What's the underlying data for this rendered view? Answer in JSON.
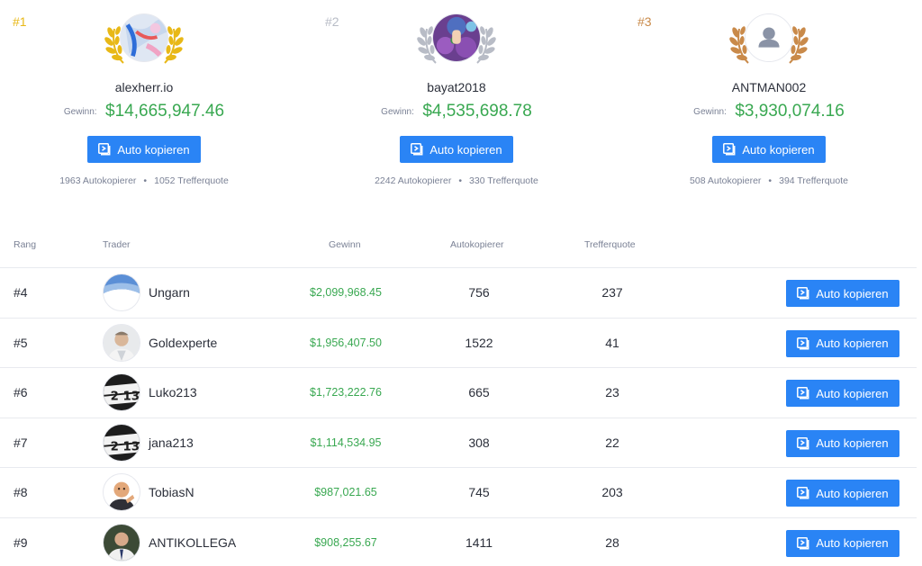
{
  "colors": {
    "accent": "#2a84f5",
    "gain": "#39a851",
    "gold": "#e8b817",
    "silver": "#b8bcc6",
    "bronze": "#c98a4a"
  },
  "podium": [
    {
      "rank": "#1",
      "name": "alexherr.io",
      "gain_label": "Gewinn:",
      "gain": "$14,665,947.46",
      "button": "Auto kopieren",
      "copiers": "1963 Autokopierer",
      "dot": "•",
      "hit": "1052 Trefferquote",
      "avatar": "abstract-photo",
      "medal": "gold"
    },
    {
      "rank": "#2",
      "name": "bayat2018",
      "gain_label": "Gewinn:",
      "gain": "$4,535,698.78",
      "button": "Auto kopieren",
      "copiers": "2242 Autokopierer",
      "dot": "•",
      "hit": "330 Trefferquote",
      "avatar": "flower-photo",
      "medal": "silver"
    },
    {
      "rank": "#3",
      "name": "ANTMAN002",
      "gain_label": "Gewinn:",
      "gain": "$3,930,074.16",
      "button": "Auto kopieren",
      "copiers": "508 Autokopierer",
      "dot": "•",
      "hit": "394 Trefferquote",
      "avatar": "default-user-icon",
      "medal": "bronze"
    }
  ],
  "table": {
    "headers": {
      "rank": "Rang",
      "trader": "Trader",
      "gain": "Gewinn",
      "copiers": "Autokopierer",
      "hit": "Trefferquote"
    },
    "rows": [
      {
        "rank": "#4",
        "name": "Ungarn",
        "gain": "$2,099,968.45",
        "copiers": "756",
        "hit": "237",
        "button": "Auto kopieren"
      },
      {
        "rank": "#5",
        "name": "Goldexperte",
        "gain": "$1,956,407.50",
        "copiers": "1522",
        "hit": "41",
        "button": "Auto kopieren"
      },
      {
        "rank": "#6",
        "name": "Luko213",
        "gain": "$1,723,222.76",
        "copiers": "665",
        "hit": "23",
        "button": "Auto kopieren"
      },
      {
        "rank": "#7",
        "name": "jana213",
        "gain": "$1,114,534.95",
        "copiers": "308",
        "hit": "22",
        "button": "Auto kopieren"
      },
      {
        "rank": "#8",
        "name": "TobiasN",
        "gain": "$987,021.65",
        "copiers": "745",
        "hit": "203",
        "button": "Auto kopieren"
      },
      {
        "rank": "#9",
        "name": "ANTIKOLLEGA",
        "gain": "$908,255.67",
        "copiers": "1411",
        "hit": "28",
        "button": "Auto kopieren"
      }
    ]
  }
}
